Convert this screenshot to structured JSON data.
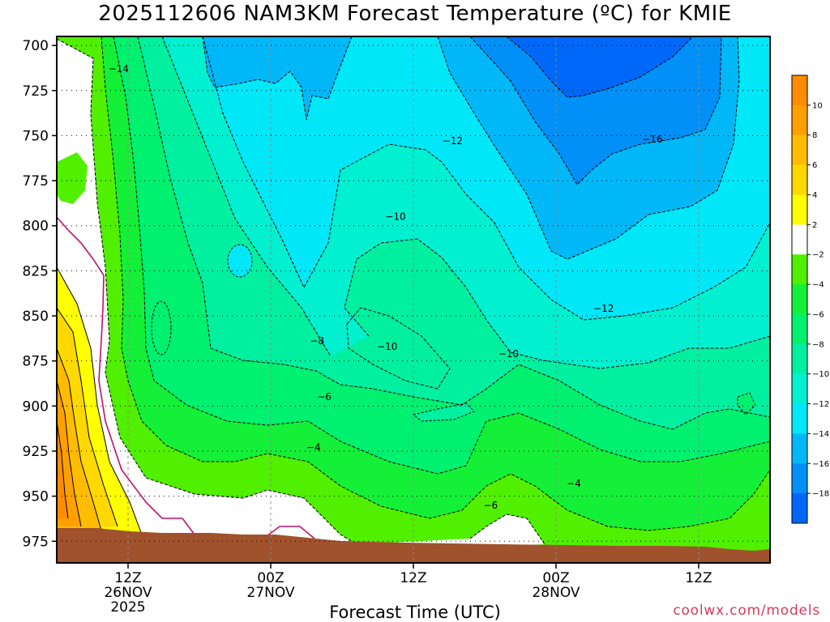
{
  "title": "2025112606 NAM3KM Forecast Temperature (ºC) for KMIE",
  "xaxis_title": "Forecast Time (UTC)",
  "credit": "coolwx.com/models",
  "colors": {
    "ground": "#a0522d",
    "background_plot": "#00c8e0",
    "contour_line": "#000000",
    "freezing_line": "#c0106a"
  },
  "chart_data": {
    "type": "heatmap",
    "title": "2025112606 NAM3KM Forecast Temperature (ºC) for KMIE",
    "xlabel": "Forecast Time (UTC)",
    "ylabel": "",
    "y_ticks": [
      "700",
      "725",
      "750",
      "775",
      "800",
      "825",
      "850",
      "875",
      "900",
      "925",
      "950",
      "975"
    ],
    "y_values": [
      700,
      725,
      750,
      775,
      800,
      825,
      850,
      875,
      900,
      925,
      950,
      975
    ],
    "ylim": [
      695,
      987
    ],
    "x_ticks": [
      {
        "value": 12,
        "line1": "12Z",
        "line2": "26NOV",
        "line3": "2025"
      },
      {
        "value": 24,
        "line1": "00Z",
        "line2": "27NOV",
        "line3": ""
      },
      {
        "value": 36,
        "line1": "12Z",
        "line2": "",
        "line3": ""
      },
      {
        "value": 48,
        "line1": "00Z",
        "line2": "28NOV",
        "line3": ""
      },
      {
        "value": 60,
        "line1": "12Z",
        "line2": "",
        "line3": ""
      }
    ],
    "xlim": [
      6,
      66
    ],
    "grid": true,
    "colorbar": {
      "labels": [
        "10",
        "8",
        "6",
        "4",
        "2",
        "-2",
        "-4",
        "-6",
        "-8",
        "-10",
        "-12",
        "-14",
        "-16",
        "-18"
      ],
      "bands": [
        {
          "lo": 10,
          "hi": 12,
          "color": "#ff8c00"
        },
        {
          "lo": 8,
          "hi": 10,
          "color": "#ffa000"
        },
        {
          "lo": 6,
          "hi": 8,
          "color": "#ffbc00"
        },
        {
          "lo": 4,
          "hi": 6,
          "color": "#ffd800"
        },
        {
          "lo": 2,
          "hi": 4,
          "color": "#ffff00"
        },
        {
          "lo": -2,
          "hi": 2,
          "color": "#ffffff"
        },
        {
          "lo": -4,
          "hi": -2,
          "color": "#50f000"
        },
        {
          "lo": -6,
          "hi": -4,
          "color": "#14f038"
        },
        {
          "lo": -8,
          "hi": -6,
          "color": "#00f070"
        },
        {
          "lo": -10,
          "hi": -8,
          "color": "#00f0a0"
        },
        {
          "lo": -12,
          "hi": -10,
          "color": "#00f0d0"
        },
        {
          "lo": -14,
          "hi": -12,
          "color": "#00e8f8"
        },
        {
          "lo": -16,
          "hi": -14,
          "color": "#00b8f8"
        },
        {
          "lo": -18,
          "hi": -16,
          "color": "#0090f8"
        },
        {
          "lo": -20,
          "hi": -18,
          "color": "#0068f8"
        }
      ]
    },
    "contour_labels": [
      {
        "text": "-14",
        "x": 11.2,
        "y": 713
      },
      {
        "text": "-12",
        "x": 39.3,
        "y": 753
      },
      {
        "text": "-16",
        "x": 56.1,
        "y": 752
      },
      {
        "text": "-10",
        "x": 34.5,
        "y": 795
      },
      {
        "text": "-12",
        "x": 52.0,
        "y": 846
      },
      {
        "text": "-10",
        "x": 33.8,
        "y": 867
      },
      {
        "text": "-10",
        "x": 44.0,
        "y": 871
      },
      {
        "text": "-8",
        "x": 27.9,
        "y": 864
      },
      {
        "text": "-6",
        "x": 28.5,
        "y": 895
      },
      {
        "text": "-4",
        "x": 27.6,
        "y": 923
      },
      {
        "text": "-6",
        "x": 42.5,
        "y": 955
      },
      {
        "text": "-4",
        "x": 49.5,
        "y": 943
      }
    ]
  }
}
